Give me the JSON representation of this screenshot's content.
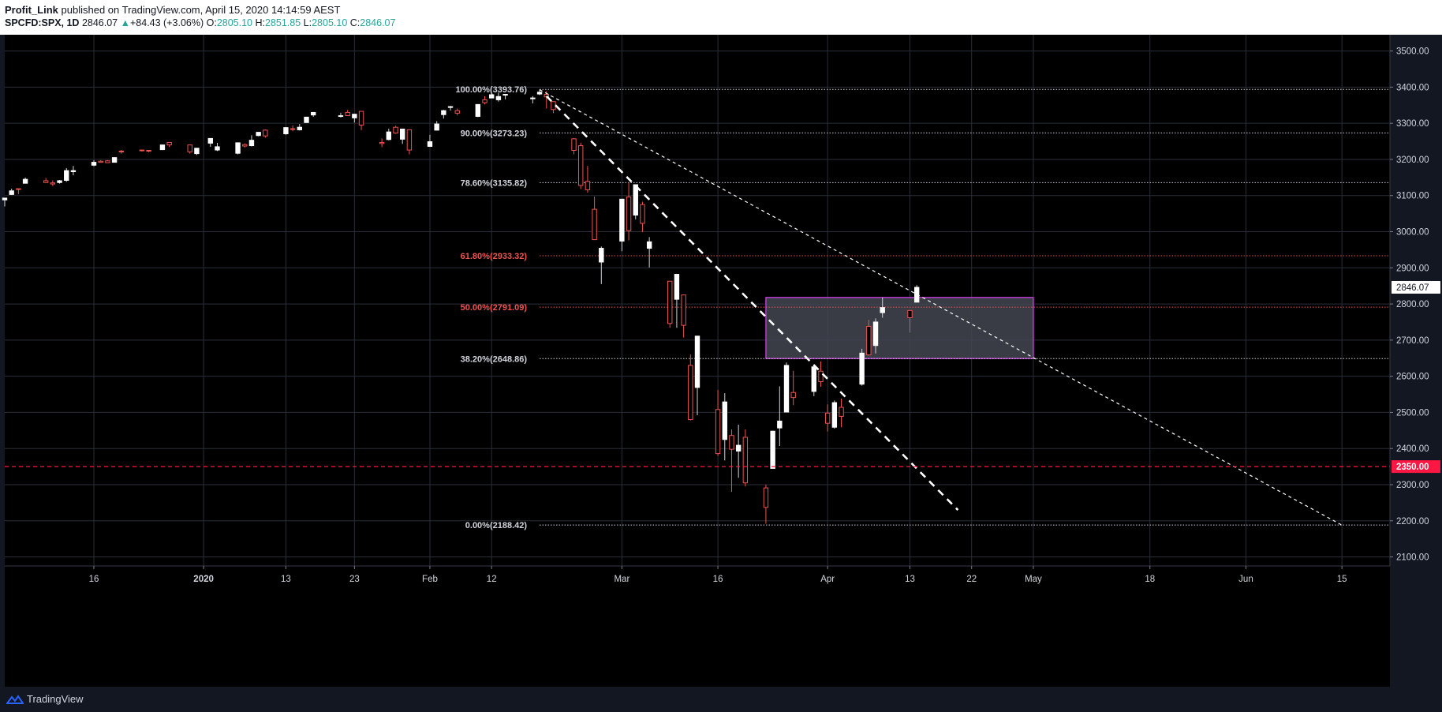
{
  "header": {
    "author": "Profit_Link",
    "published_text": "published on TradingView.com, April 15, 2020 14:14:59 AEST",
    "symbol": "SPCFD:SPX, 1D",
    "last": "2846.07",
    "arrow": "▲",
    "change": "+84.43 (+3.06%)",
    "open_label": "O:",
    "open": "2805.10",
    "high_label": "H:",
    "high": "2851.85",
    "low_label": "L:",
    "low": "2805.10",
    "close_label": "C:",
    "close": "2846.07"
  },
  "footer": {
    "brand": "TradingView",
    "logo_icon": "tradingview-logo-icon"
  },
  "colors": {
    "background": "#000000",
    "page": "#131722",
    "grid": "#2a2e39",
    "up_candle": "#ffffff",
    "down_candle": "#000000",
    "down_outline": "#ef5350",
    "fib_white": "#d1d4dc",
    "fib_red": "#ef5350",
    "zone_fill": "#434651",
    "zone_border": "#e040fb",
    "support_line": "#ff1744",
    "price_tag": "#ffffff"
  },
  "chart_data": {
    "type": "candlestick",
    "symbol": "SPCFD:SPX",
    "interval": "1D",
    "ylim": [
      2075,
      3545
    ],
    "y_ticks": [
      "2100.00",
      "2200.00",
      "2300.00",
      "2400.00",
      "2500.00",
      "2600.00",
      "2700.00",
      "2800.00",
      "2900.00",
      "3000.00",
      "3100.00",
      "3200.00",
      "3300.00",
      "3400.00",
      "3500.00"
    ],
    "x_range": [
      "2019-12-03",
      "2020-06-22"
    ],
    "x_ticks": [
      {
        "date": "2019-12-16",
        "label": "16",
        "bold": false
      },
      {
        "date": "2020-01-01",
        "label": "2020",
        "bold": true
      },
      {
        "date": "2020-01-13",
        "label": "13",
        "bold": false
      },
      {
        "date": "2020-01-23",
        "label": "23",
        "bold": false
      },
      {
        "date": "2020-02-03",
        "label": "Feb",
        "bold": false
      },
      {
        "date": "2020-02-12",
        "label": "12",
        "bold": false
      },
      {
        "date": "2020-03-02",
        "label": "Mar",
        "bold": false
      },
      {
        "date": "2020-03-16",
        "label": "16",
        "bold": false
      },
      {
        "date": "2020-04-01",
        "label": "Apr",
        "bold": false
      },
      {
        "date": "2020-04-13",
        "label": "13",
        "bold": false
      },
      {
        "date": "2020-04-22",
        "label": "22",
        "bold": false
      },
      {
        "date": "2020-05-01",
        "label": "May",
        "bold": false
      },
      {
        "date": "2020-05-18",
        "label": "18",
        "bold": false
      },
      {
        "date": "2020-06-01",
        "label": "Jun",
        "bold": false
      },
      {
        "date": "2020-06-15",
        "label": "15",
        "bold": false
      }
    ],
    "candles": [
      {
        "d": "2019-12-03",
        "o": 3088,
        "h": 3094,
        "l": 3070,
        "c": 3093
      },
      {
        "d": "2019-12-04",
        "o": 3103,
        "h": 3119,
        "l": 3102,
        "c": 3113
      },
      {
        "d": "2019-12-05",
        "o": 3119,
        "h": 3120,
        "l": 3104,
        "c": 3117
      },
      {
        "d": "2019-12-06",
        "o": 3134,
        "h": 3150,
        "l": 3134,
        "c": 3145
      },
      {
        "d": "2019-12-09",
        "o": 3141,
        "h": 3148,
        "l": 3135,
        "c": 3136
      },
      {
        "d": "2019-12-10",
        "o": 3135,
        "h": 3142,
        "l": 3126,
        "c": 3132
      },
      {
        "d": "2019-12-11",
        "o": 3136,
        "h": 3143,
        "l": 3133,
        "c": 3141
      },
      {
        "d": "2019-12-12",
        "o": 3142,
        "h": 3176,
        "l": 3138,
        "c": 3169
      },
      {
        "d": "2019-12-13",
        "o": 3166,
        "h": 3182,
        "l": 3156,
        "c": 3169
      },
      {
        "d": "2019-12-16",
        "o": 3184,
        "h": 3198,
        "l": 3181,
        "c": 3192
      },
      {
        "d": "2019-12-17",
        "o": 3195,
        "h": 3198,
        "l": 3191,
        "c": 3192
      },
      {
        "d": "2019-12-18",
        "o": 3196,
        "h": 3198,
        "l": 3191,
        "c": 3191
      },
      {
        "d": "2019-12-19",
        "o": 3192,
        "h": 3206,
        "l": 3192,
        "c": 3205
      },
      {
        "d": "2019-12-20",
        "o": 3223,
        "h": 3226,
        "l": 3216,
        "c": 3221
      },
      {
        "d": "2019-12-23",
        "o": 3226,
        "h": 3227,
        "l": 3222,
        "c": 3224
      },
      {
        "d": "2019-12-24",
        "o": 3225,
        "h": 3226,
        "l": 3220,
        "c": 3223
      },
      {
        "d": "2019-12-26",
        "o": 3227,
        "h": 3240,
        "l": 3227,
        "c": 3240
      },
      {
        "d": "2019-12-27",
        "o": 3247,
        "h": 3247,
        "l": 3234,
        "c": 3240
      },
      {
        "d": "2019-12-30",
        "o": 3240,
        "h": 3240,
        "l": 3216,
        "c": 3221
      },
      {
        "d": "2019-12-31",
        "o": 3216,
        "h": 3231,
        "l": 3212,
        "c": 3231
      },
      {
        "d": "2020-01-02",
        "o": 3245,
        "h": 3258,
        "l": 3235,
        "c": 3258
      },
      {
        "d": "2020-01-03",
        "o": 3226,
        "h": 3246,
        "l": 3223,
        "c": 3235
      },
      {
        "d": "2020-01-06",
        "o": 3217,
        "h": 3246,
        "l": 3214,
        "c": 3246
      },
      {
        "d": "2020-01-07",
        "o": 3241,
        "h": 3244,
        "l": 3233,
        "c": 3237
      },
      {
        "d": "2020-01-08",
        "o": 3238,
        "h": 3267,
        "l": 3236,
        "c": 3253
      },
      {
        "d": "2020-01-09",
        "o": 3266,
        "h": 3275,
        "l": 3264,
        "c": 3275
      },
      {
        "d": "2020-01-10",
        "o": 3281,
        "h": 3283,
        "l": 3260,
        "c": 3265
      },
      {
        "d": "2020-01-13",
        "o": 3271,
        "h": 3289,
        "l": 3268,
        "c": 3288
      },
      {
        "d": "2020-01-14",
        "o": 3285,
        "h": 3294,
        "l": 3278,
        "c": 3283
      },
      {
        "d": "2020-01-15",
        "o": 3282,
        "h": 3298,
        "l": 3280,
        "c": 3289
      },
      {
        "d": "2020-01-16",
        "o": 3302,
        "h": 3317,
        "l": 3302,
        "c": 3317
      },
      {
        "d": "2020-01-17",
        "o": 3323,
        "h": 3329,
        "l": 3318,
        "c": 3330
      },
      {
        "d": "2020-01-21",
        "o": 3321,
        "h": 3329,
        "l": 3316,
        "c": 3321
      },
      {
        "d": "2020-01-22",
        "o": 3330,
        "h": 3337,
        "l": 3320,
        "c": 3321
      },
      {
        "d": "2020-01-23",
        "o": 3315,
        "h": 3326,
        "l": 3302,
        "c": 3325
      },
      {
        "d": "2020-01-24",
        "o": 3333,
        "h": 3334,
        "l": 3281,
        "c": 3295
      },
      {
        "d": "2020-01-27",
        "o": 3247,
        "h": 3258,
        "l": 3234,
        "c": 3244
      },
      {
        "d": "2020-01-28",
        "o": 3255,
        "h": 3285,
        "l": 3253,
        "c": 3276
      },
      {
        "d": "2020-01-29",
        "o": 3289,
        "h": 3293,
        "l": 3271,
        "c": 3273
      },
      {
        "d": "2020-01-30",
        "o": 3256,
        "h": 3285,
        "l": 3243,
        "c": 3284
      },
      {
        "d": "2020-01-31",
        "o": 3282,
        "h": 3282,
        "l": 3214,
        "c": 3226
      },
      {
        "d": "2020-02-03",
        "o": 3236,
        "h": 3268,
        "l": 3236,
        "c": 3249
      },
      {
        "d": "2020-02-04",
        "o": 3281,
        "h": 3306,
        "l": 3280,
        "c": 3298
      },
      {
        "d": "2020-02-05",
        "o": 3324,
        "h": 3337,
        "l": 3313,
        "c": 3335
      },
      {
        "d": "2020-02-06",
        "o": 3344,
        "h": 3348,
        "l": 3335,
        "c": 3346
      },
      {
        "d": "2020-02-07",
        "o": 3335,
        "h": 3341,
        "l": 3322,
        "c": 3328
      },
      {
        "d": "2020-02-10",
        "o": 3319,
        "h": 3352,
        "l": 3317,
        "c": 3352
      },
      {
        "d": "2020-02-11",
        "o": 3365,
        "h": 3375,
        "l": 3352,
        "c": 3357
      },
      {
        "d": "2020-02-12",
        "o": 3370,
        "h": 3381,
        "l": 3369,
        "c": 3379
      },
      {
        "d": "2020-02-13",
        "o": 3365,
        "h": 3385,
        "l": 3360,
        "c": 3374
      },
      {
        "d": "2020-02-14",
        "o": 3379,
        "h": 3380,
        "l": 3366,
        "c": 3380
      },
      {
        "d": "2020-02-18",
        "o": 3370,
        "h": 3375,
        "l": 3355,
        "c": 3370
      },
      {
        "d": "2020-02-19",
        "o": 3381,
        "h": 3393,
        "l": 3378,
        "c": 3386
      },
      {
        "d": "2020-02-20",
        "o": 3380,
        "h": 3389,
        "l": 3341,
        "c": 3373
      },
      {
        "d": "2020-02-21",
        "o": 3360,
        "h": 3360,
        "l": 3328,
        "c": 3338
      },
      {
        "d": "2020-02-24",
        "o": 3257,
        "h": 3259,
        "l": 3214,
        "c": 3225
      },
      {
        "d": "2020-02-25",
        "o": 3238,
        "h": 3246,
        "l": 3118,
        "c": 3128
      },
      {
        "d": "2020-02-26",
        "o": 3139,
        "h": 3182,
        "l": 3108,
        "c": 3116
      },
      {
        "d": "2020-02-27",
        "o": 3062,
        "h": 3097,
        "l": 2977,
        "c": 2978
      },
      {
        "d": "2020-02-28",
        "o": 2916,
        "h": 2959,
        "l": 2855,
        "c": 2954
      },
      {
        "d": "2020-03-02",
        "o": 2974,
        "h": 3090,
        "l": 2946,
        "c": 3090
      },
      {
        "d": "2020-03-03",
        "o": 3096,
        "h": 3136,
        "l": 2976,
        "c": 3003
      },
      {
        "d": "2020-03-04",
        "o": 3046,
        "h": 3130,
        "l": 3034,
        "c": 3130
      },
      {
        "d": "2020-03-05",
        "o": 3075,
        "h": 3083,
        "l": 2999,
        "c": 3023
      },
      {
        "d": "2020-03-06",
        "o": 2954,
        "h": 2985,
        "l": 2901,
        "c": 2972
      },
      {
        "d": "2020-03-09",
        "o": 2863,
        "h": 2863,
        "l": 2734,
        "c": 2746
      },
      {
        "d": "2020-03-10",
        "o": 2813,
        "h": 2882,
        "l": 2734,
        "c": 2882
      },
      {
        "d": "2020-03-11",
        "o": 2825,
        "h": 2825,
        "l": 2707,
        "c": 2741
      },
      {
        "d": "2020-03-12",
        "o": 2630,
        "h": 2660,
        "l": 2478,
        "c": 2480
      },
      {
        "d": "2020-03-13",
        "o": 2569,
        "h": 2711,
        "l": 2492,
        "c": 2711
      },
      {
        "d": "2020-03-16",
        "o": 2508,
        "h": 2562,
        "l": 2380,
        "c": 2386
      },
      {
        "d": "2020-03-17",
        "o": 2425,
        "h": 2553,
        "l": 2367,
        "c": 2529
      },
      {
        "d": "2020-03-18",
        "o": 2436,
        "h": 2453,
        "l": 2280,
        "c": 2398
      },
      {
        "d": "2020-03-19",
        "o": 2393,
        "h": 2466,
        "l": 2319,
        "c": 2409
      },
      {
        "d": "2020-03-20",
        "o": 2431,
        "h": 2453,
        "l": 2295,
        "c": 2305
      },
      {
        "d": "2020-03-23",
        "o": 2291,
        "h": 2300,
        "l": 2192,
        "c": 2237
      },
      {
        "d": "2020-03-24",
        "o": 2345,
        "h": 2449,
        "l": 2345,
        "c": 2448
      },
      {
        "d": "2020-03-25",
        "o": 2457,
        "h": 2572,
        "l": 2407,
        "c": 2476
      },
      {
        "d": "2020-03-26",
        "o": 2501,
        "h": 2638,
        "l": 2500,
        "c": 2630
      },
      {
        "d": "2020-03-27",
        "o": 2555,
        "h": 2615,
        "l": 2520,
        "c": 2541
      },
      {
        "d": "2020-03-30",
        "o": 2558,
        "h": 2631,
        "l": 2545,
        "c": 2626
      },
      {
        "d": "2020-03-31",
        "o": 2614,
        "h": 2641,
        "l": 2571,
        "c": 2585
      },
      {
        "d": "2020-04-01",
        "o": 2498,
        "h": 2522,
        "l": 2447,
        "c": 2470
      },
      {
        "d": "2020-04-02",
        "o": 2459,
        "h": 2533,
        "l": 2455,
        "c": 2527
      },
      {
        "d": "2020-04-03",
        "o": 2514,
        "h": 2538,
        "l": 2459,
        "c": 2489
      },
      {
        "d": "2020-04-06",
        "o": 2578,
        "h": 2676,
        "l": 2574,
        "c": 2664
      },
      {
        "d": "2020-04-07",
        "o": 2738,
        "h": 2756,
        "l": 2657,
        "c": 2659
      },
      {
        "d": "2020-04-08",
        "o": 2685,
        "h": 2760,
        "l": 2663,
        "c": 2750
      },
      {
        "d": "2020-04-09",
        "o": 2776,
        "h": 2818,
        "l": 2762,
        "c": 2790
      },
      {
        "d": "2020-04-13",
        "o": 2782,
        "h": 2782,
        "l": 2721,
        "c": 2762
      },
      {
        "d": "2020-04-14",
        "o": 2805,
        "h": 2852,
        "l": 2805,
        "c": 2846
      }
    ],
    "fibonacci": [
      {
        "label": "100.00%(3393.76)",
        "value": 3393.76,
        "color": "white"
      },
      {
        "label": "90.00%(3273.23)",
        "value": 3273.23,
        "color": "white"
      },
      {
        "label": "78.60%(3135.82)",
        "value": 3135.82,
        "color": "white"
      },
      {
        "label": "61.80%(2933.32)",
        "value": 2933.32,
        "color": "red"
      },
      {
        "label": "50.00%(2791.09)",
        "value": 2791.09,
        "color": "red"
      },
      {
        "label": "38.20%(2648.86)",
        "value": 2648.86,
        "color": "white"
      },
      {
        "label": "0.00%(2188.42)",
        "value": 2188.42,
        "color": "white"
      }
    ],
    "fib_x_range": [
      "2020-02-19",
      "2020-06-22"
    ],
    "trendlines": [
      {
        "name": "steep",
        "style": "dashed-thick",
        "from": {
          "d": "2020-02-20",
          "v": 3375
        },
        "to": {
          "d": "2020-04-20",
          "v": 2230
        }
      },
      {
        "name": "long",
        "style": "dashed-thin",
        "from": {
          "d": "2020-02-19",
          "v": 3393
        },
        "to": {
          "d": "2020-06-15",
          "v": 2188
        }
      }
    ],
    "zone": {
      "from": "2020-03-23",
      "to": "2020-05-01",
      "top": 2818,
      "bottom": 2649
    },
    "support": {
      "value": 2350.0,
      "label": "2350.00"
    },
    "last_price_label": "2846.07",
    "last_price_value": 2846.07
  }
}
